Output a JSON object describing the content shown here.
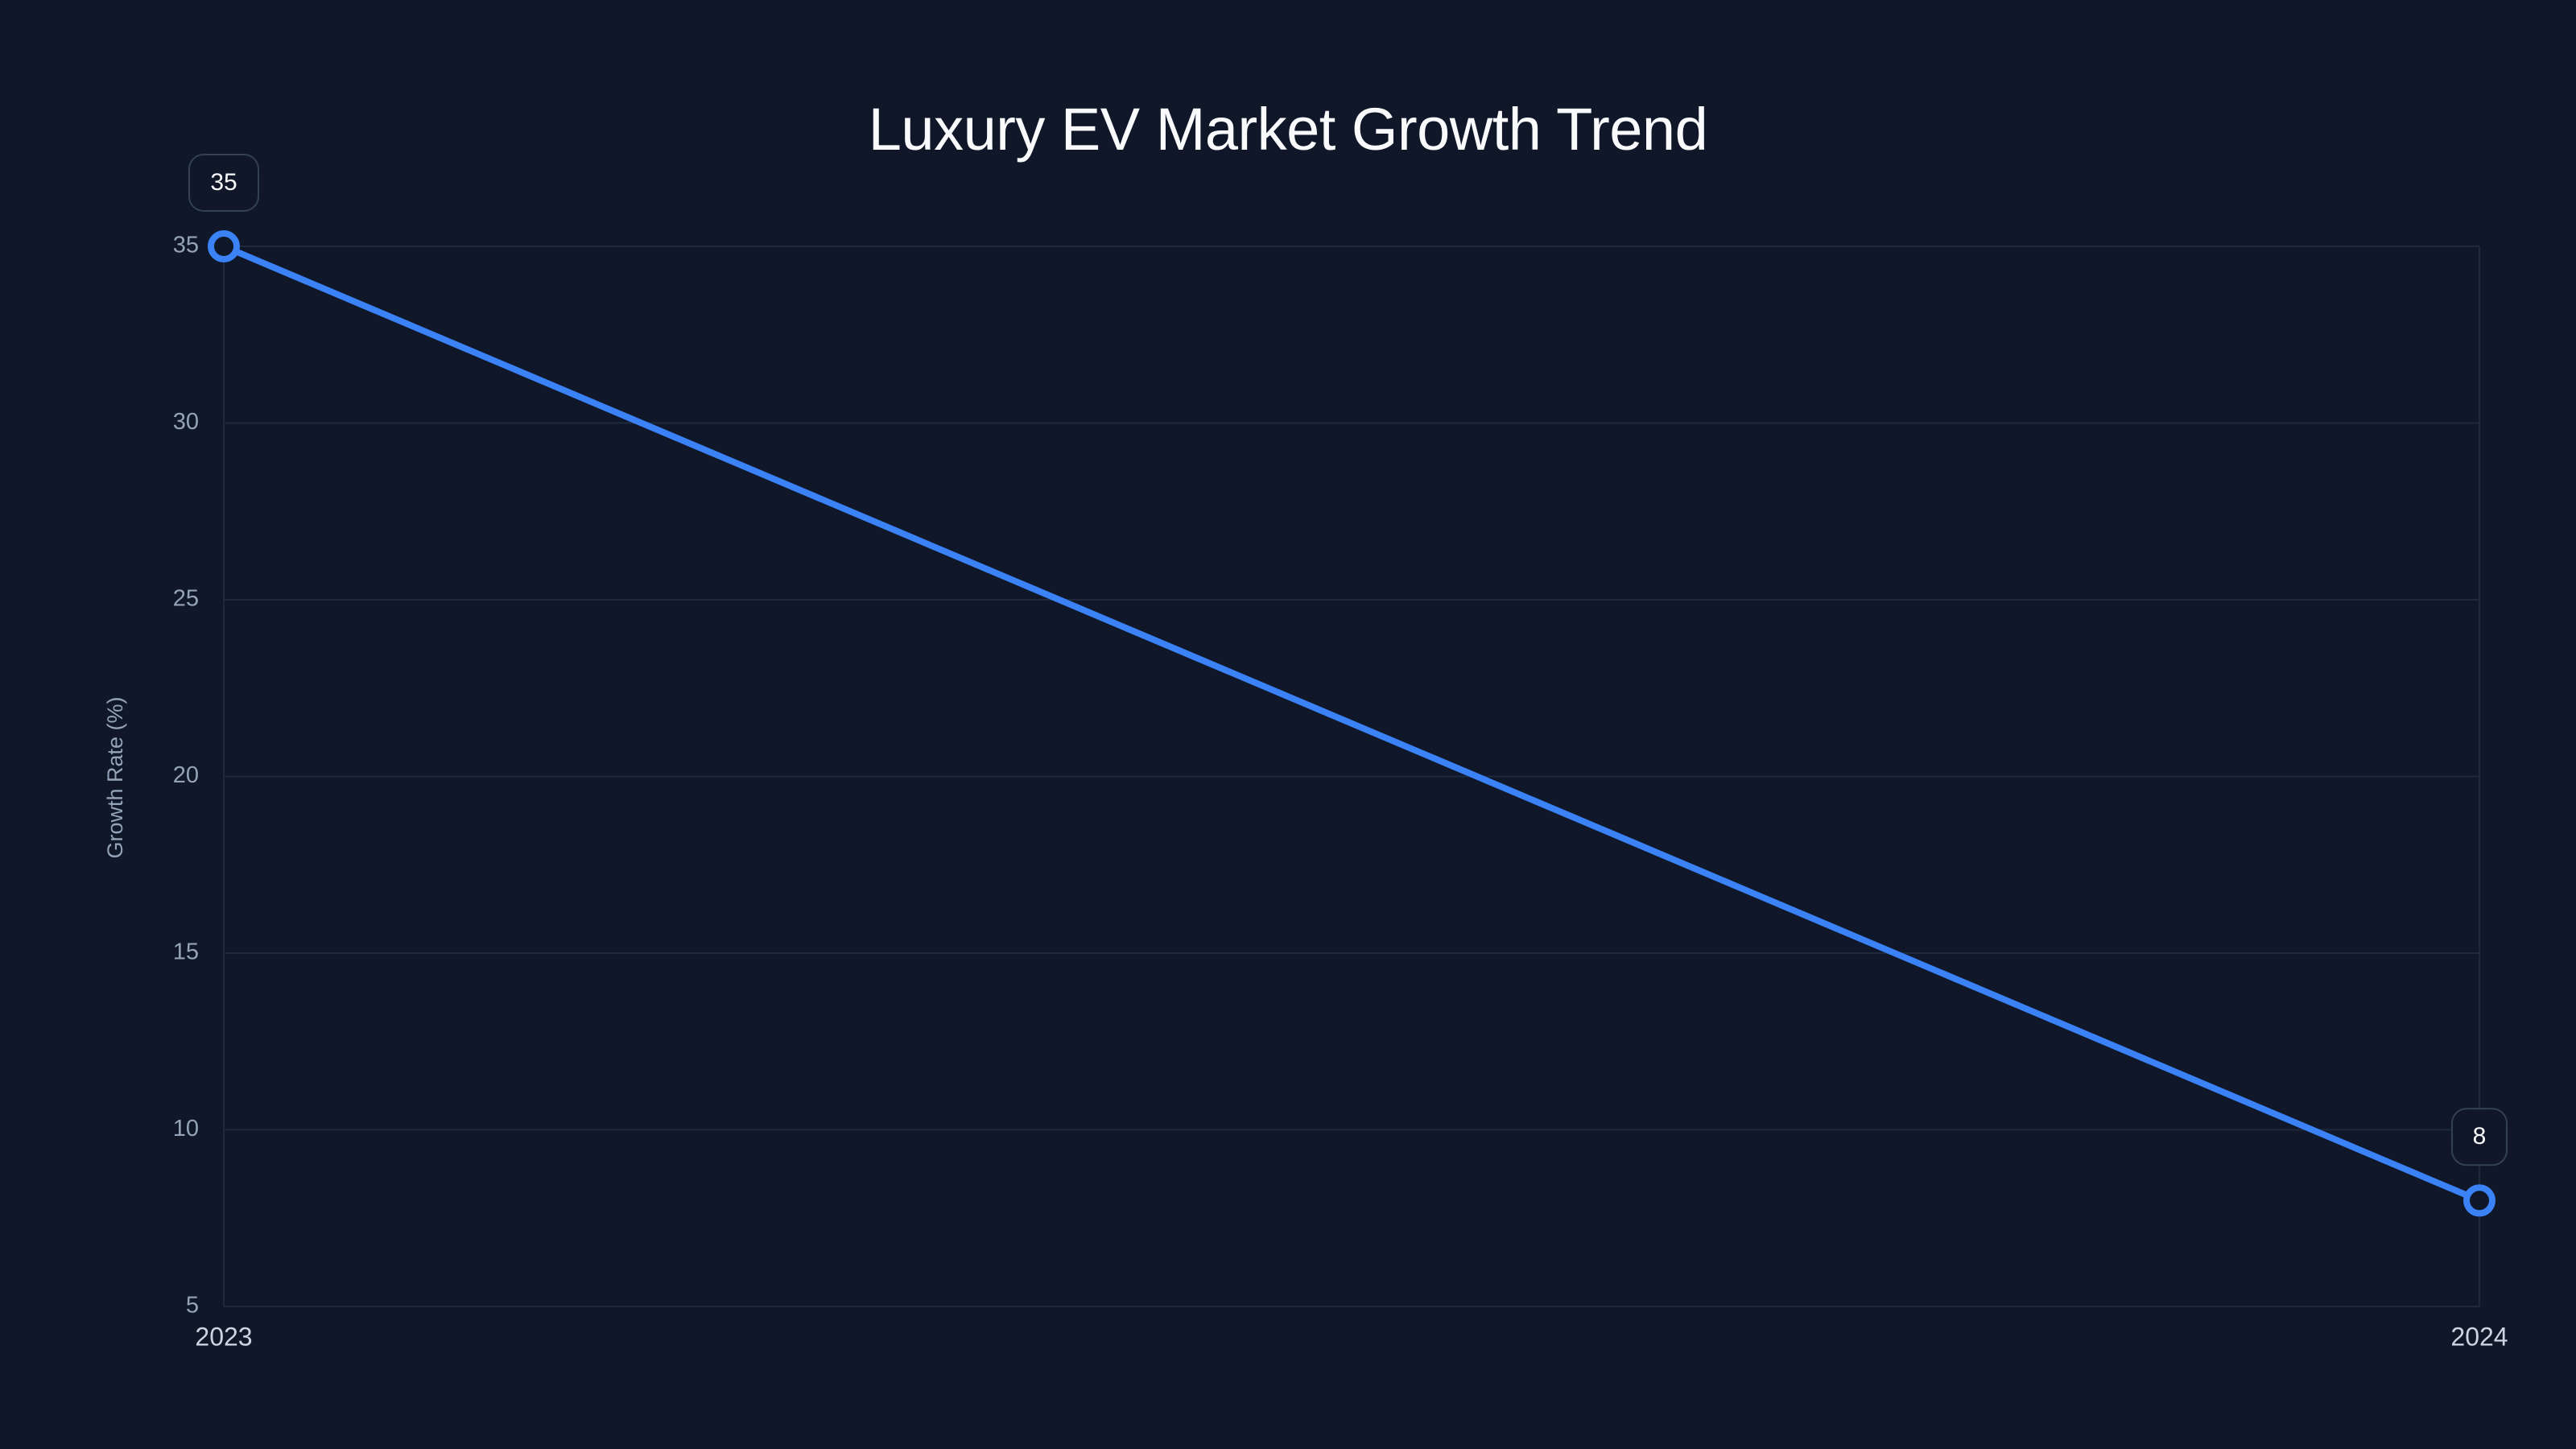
{
  "chart_data": {
    "type": "line",
    "title": "Luxury EV Market Growth Trend",
    "xlabel": "",
    "ylabel": "Growth Rate (%)",
    "categories": [
      "2023",
      "2024"
    ],
    "series": [
      {
        "name": "Growth Rate (%)",
        "values": [
          35,
          8
        ],
        "color": "#3b82f6"
      }
    ],
    "data_labels": [
      "35",
      "8"
    ],
    "yticks": [
      "5",
      "10",
      "15",
      "20",
      "25",
      "30",
      "35"
    ],
    "ylim": [
      5,
      35
    ],
    "grid": true,
    "legend": "none"
  },
  "colors": {
    "background": "#0f1729",
    "line": "#3b82f6",
    "grid": "#1e293b",
    "label_box_border": "#334155"
  }
}
